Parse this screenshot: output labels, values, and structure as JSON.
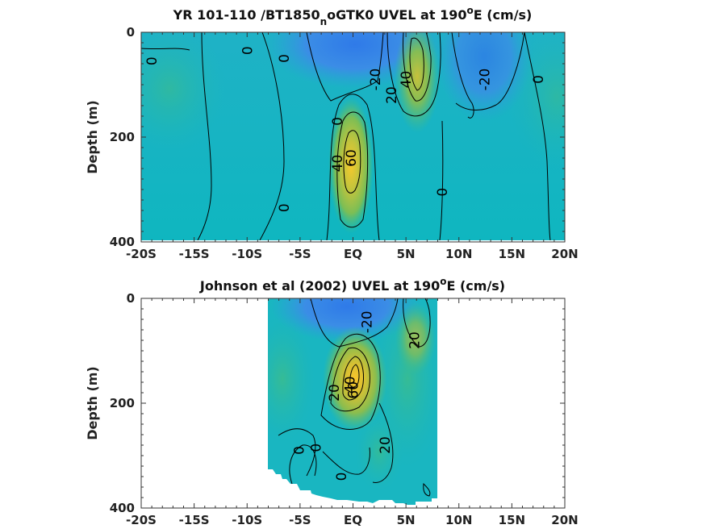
{
  "chart_data": [
    {
      "type": "heatmap",
      "title": "YR 101-110 /BT1850_noGTK0 UVEL at 190°E (cm/s)",
      "title_parts": {
        "main": "YR 101-110 /BT1850",
        "sub": "n",
        "mid": "oGTK0 UVEL at 190",
        "sup": "o",
        "end": "E (cm/s)"
      },
      "ylabel": "Depth (m)",
      "xlim": [
        -20,
        20
      ],
      "ylim": [
        0,
        400
      ],
      "y_reversed": true,
      "x_ticks": [
        -20,
        -15,
        -10,
        -5,
        0,
        5,
        10,
        15,
        20
      ],
      "x_tick_labels": [
        "-20S",
        "-15S",
        "-10S",
        "-5S",
        "EQ",
        "5N",
        "10N",
        "15N",
        "20N"
      ],
      "y_ticks": [
        0,
        200,
        400
      ],
      "y_tick_labels": [
        "0",
        "200",
        "400"
      ],
      "data_extent_x": [
        -20,
        20
      ],
      "colormap": "parula",
      "contour_interval": 20,
      "features": [
        {
          "name": "surface westward flow",
          "lat": -2,
          "depth": 40,
          "value": -30
        },
        {
          "name": "north surface westward flow",
          "lat": 12,
          "depth": 60,
          "value": -25
        },
        {
          "name": "equatorial undercurrent core",
          "lat": 0,
          "depth": 230,
          "value": 80
        },
        {
          "name": "north countercurrent",
          "lat": 5.5,
          "depth": 60,
          "value": 45
        }
      ],
      "contour_labels": [
        {
          "text": "0",
          "lat": -19,
          "depth": 55
        },
        {
          "text": "0",
          "lat": -10,
          "depth": 35
        },
        {
          "text": "0",
          "lat": -6.5,
          "depth": 50
        },
        {
          "text": "-20",
          "lat": 2.1,
          "depth": 90
        },
        {
          "text": "20",
          "lat": 3.6,
          "depth": 120
        },
        {
          "text": "40",
          "lat": 5,
          "depth": 90
        },
        {
          "text": "-20",
          "lat": 12.4,
          "depth": 90
        },
        {
          "text": "0",
          "lat": 17.5,
          "depth": 90
        },
        {
          "text": "0",
          "lat": -1.5,
          "depth": 170
        },
        {
          "text": "40",
          "lat": -1.5,
          "depth": 250
        },
        {
          "text": "60",
          "lat": -0.2,
          "depth": 240
        },
        {
          "text": "0",
          "lat": 8.4,
          "depth": 305
        },
        {
          "text": "0",
          "lat": -6.5,
          "depth": 335
        }
      ]
    },
    {
      "type": "heatmap",
      "title": "Johnson et al (2002) UVEL at 190°E (cm/s)",
      "title_parts": {
        "main": "Johnson et al (2002) UVEL at 190",
        "sup": "o",
        "end": "E (cm/s)"
      },
      "ylabel": "Depth (m)",
      "xlim": [
        -20,
        20
      ],
      "ylim": [
        0,
        400
      ],
      "y_reversed": true,
      "x_ticks": [
        -20,
        -15,
        -10,
        -5,
        0,
        5,
        10,
        15,
        20
      ],
      "x_tick_labels": [
        "-20S",
        "-15S",
        "-10S",
        "-5S",
        "EQ",
        "5N",
        "10N",
        "15N",
        "20N"
      ],
      "y_ticks": [
        0,
        200,
        400
      ],
      "y_tick_labels": [
        "0",
        "200",
        "400"
      ],
      "data_extent_x": [
        -8,
        8
      ],
      "colormap": "parula",
      "contour_interval": 20,
      "features": [
        {
          "name": "surface westward flow",
          "lat": -1,
          "depth": 30,
          "value": -25
        },
        {
          "name": "equatorial undercurrent core",
          "lat": 0,
          "depth": 160,
          "value": 75
        },
        {
          "name": "north countercurrent",
          "lat": 5.5,
          "depth": 60,
          "value": 30
        }
      ],
      "contour_labels": [
        {
          "text": "-20",
          "lat": 1.3,
          "depth": 45
        },
        {
          "text": "20",
          "lat": 5.8,
          "depth": 80
        },
        {
          "text": "20",
          "lat": -1.8,
          "depth": 180
        },
        {
          "text": "40",
          "lat": -0.3,
          "depth": 165
        },
        {
          "text": "60",
          "lat": 0,
          "depth": 175
        },
        {
          "text": "0",
          "lat": -5.1,
          "depth": 290
        },
        {
          "text": "0",
          "lat": -3.5,
          "depth": 285
        },
        {
          "text": "20",
          "lat": 3,
          "depth": 280
        },
        {
          "text": "0",
          "lat": -1.1,
          "depth": 340
        }
      ]
    }
  ]
}
